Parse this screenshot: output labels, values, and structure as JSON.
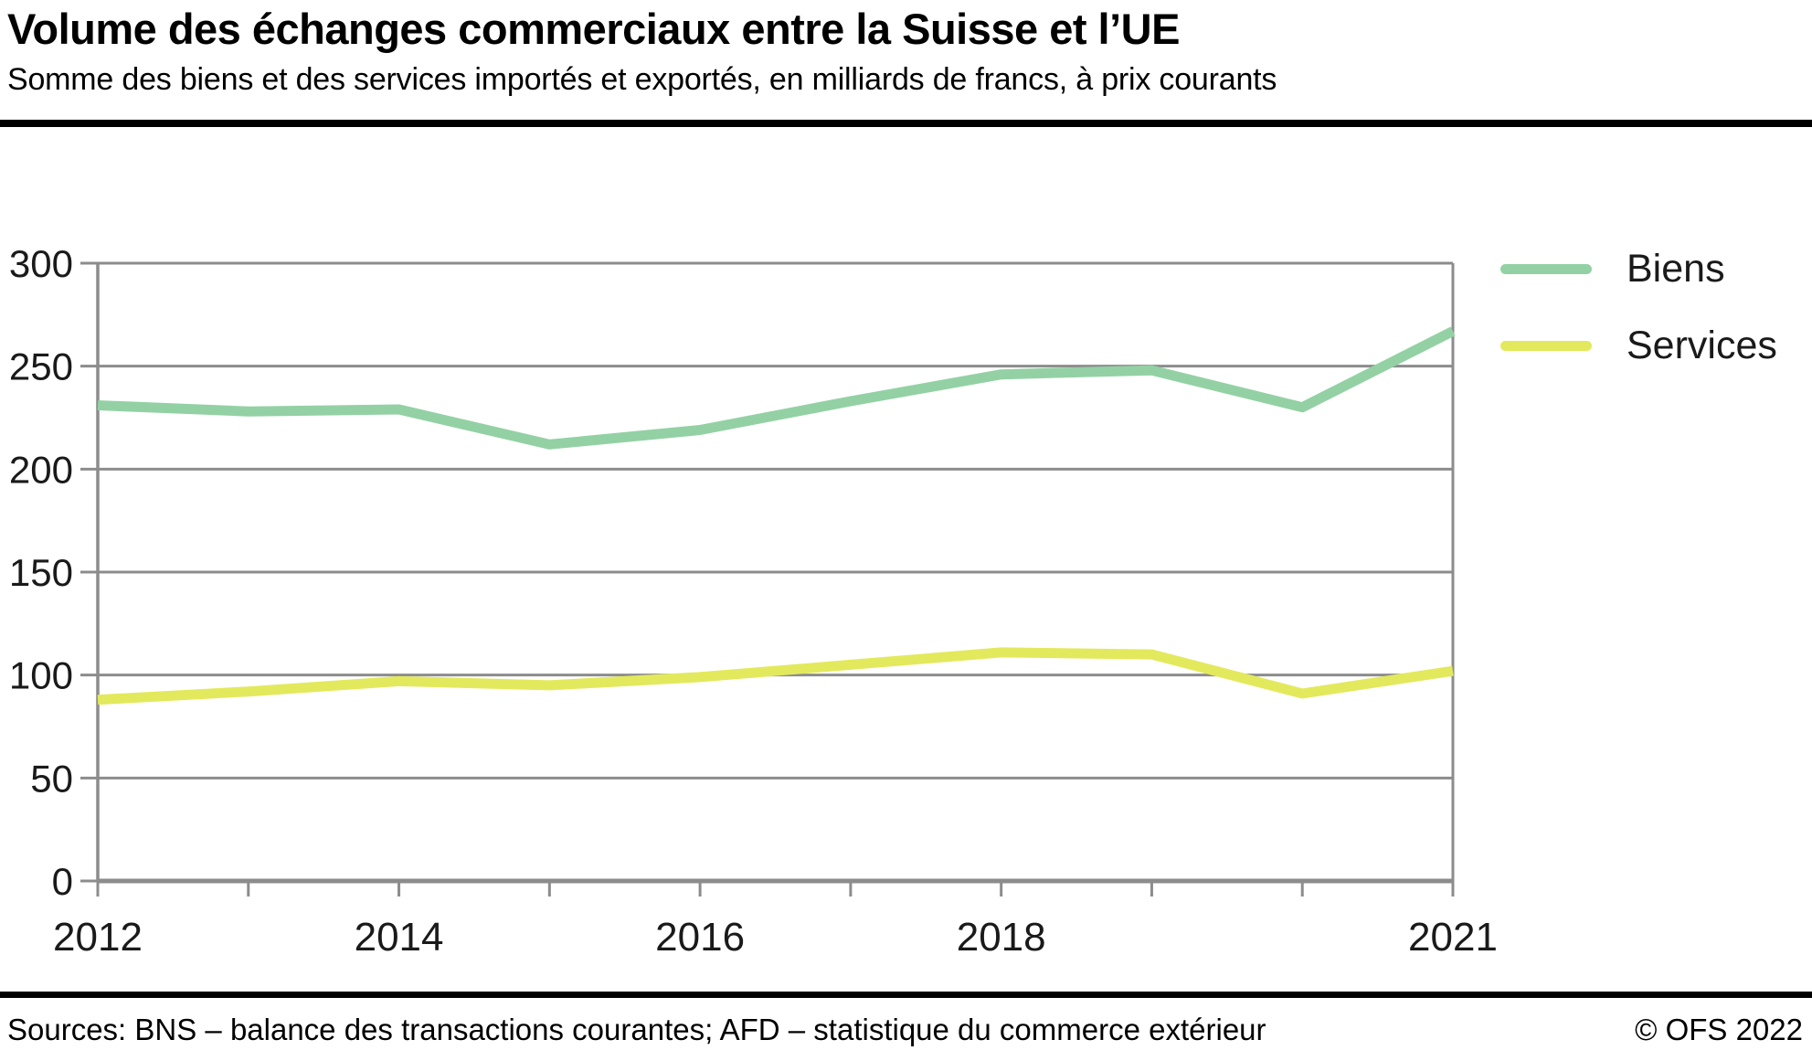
{
  "header": {
    "title": "Volume des échanges commerciaux entre la Suisse et l’UE",
    "subtitle": "Somme des biens et des services importés et exportés, en milliards de francs, à prix courants"
  },
  "legend": {
    "items": [
      {
        "label": "Biens",
        "color": "#93d1a4"
      },
      {
        "label": "Services",
        "color": "#e3e95c"
      }
    ]
  },
  "footer": {
    "sources": "Sources: BNS – balance des transactions courantes; AFD – statistique du commerce extérieur",
    "copyright": "© OFS 2022"
  },
  "colors": {
    "grid": "#8c8c8c",
    "axis": "#8c8c8c",
    "rule": "#000000",
    "biens": "#93d1a4",
    "services": "#e3e95c"
  },
  "chart_data": {
    "type": "line",
    "title": "Volume des échanges commerciaux entre la Suisse et l’UE",
    "subtitle": "Somme des biens et des services importés et exportés, en milliards de francs, à prix courants",
    "unit": "milliards de francs",
    "x": [
      2012,
      2013,
      2014,
      2015,
      2016,
      2017,
      2018,
      2019,
      2020,
      2021
    ],
    "series": [
      {
        "name": "Biens",
        "color": "#93d1a4",
        "values": [
          231,
          228,
          229,
          212,
          219,
          233,
          246,
          248,
          230,
          267
        ]
      },
      {
        "name": "Services",
        "color": "#e3e95c",
        "values": [
          88,
          92,
          97,
          95,
          99,
          105,
          111,
          110,
          91,
          102
        ]
      }
    ],
    "ylim": [
      0,
      300
    ],
    "yticks": [
      0,
      50,
      100,
      150,
      200,
      250,
      300
    ],
    "xticks": [
      2012,
      2013,
      2014,
      2015,
      2016,
      2017,
      2018,
      2019,
      2020,
      2021
    ],
    "xtick_labels_shown": [
      "2012",
      "2014",
      "2016",
      "2018",
      "2021"
    ],
    "xlabel": "",
    "ylabel": "",
    "grid": "horizontal",
    "legend_position": "top-right"
  }
}
